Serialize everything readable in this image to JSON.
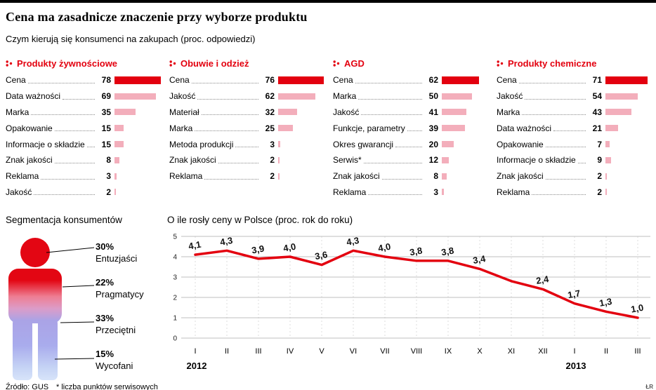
{
  "meta": {
    "credit": "ŁR"
  },
  "colors": {
    "accent": "#e3000f",
    "bar_primary": "#e3000f",
    "bar_secondary": "#f3aebb"
  },
  "header": {
    "title": "Cena ma zasadnicze znaczenie przy wyborze produktu",
    "subtitle": "Czym kierują się konsumenci na zakupach (proc. odpowiedzi)"
  },
  "ranking_columns": [
    {
      "title": "Produkty żywnościowe",
      "rows": [
        {
          "label": "Cena",
          "value": 78
        },
        {
          "label": "Data ważności",
          "value": 69
        },
        {
          "label": "Marka",
          "value": 35
        },
        {
          "label": "Opakowanie",
          "value": 15
        },
        {
          "label": "Informacje o składzie",
          "value": 15
        },
        {
          "label": "Znak jakości",
          "value": 8
        },
        {
          "label": "Reklama",
          "value": 3
        },
        {
          "label": "Jakość",
          "value": 2
        }
      ]
    },
    {
      "title": "Obuwie i odzież",
      "rows": [
        {
          "label": "Cena",
          "value": 76
        },
        {
          "label": "Jakość",
          "value": 62
        },
        {
          "label": "Materiał",
          "value": 32
        },
        {
          "label": "Marka",
          "value": 25
        },
        {
          "label": "Metoda produkcji",
          "value": 3
        },
        {
          "label": "Znak jakości",
          "value": 2
        },
        {
          "label": "Reklama",
          "value": 2
        }
      ]
    },
    {
      "title": "AGD",
      "rows": [
        {
          "label": "Cena",
          "value": 62
        },
        {
          "label": "Marka",
          "value": 50
        },
        {
          "label": "Jakość",
          "value": 41
        },
        {
          "label": "Funkcje, parametry",
          "value": 39
        },
        {
          "label": "Okres gwarancji",
          "value": 20
        },
        {
          "label": "Serwis*",
          "value": 12
        },
        {
          "label": "Znak jakości",
          "value": 8
        },
        {
          "label": "Reklama",
          "value": 3
        }
      ]
    },
    {
      "title": "Produkty chemiczne",
      "rows": [
        {
          "label": "Cena",
          "value": 71
        },
        {
          "label": "Jakość",
          "value": 54
        },
        {
          "label": "Marka",
          "value": 43
        },
        {
          "label": "Data ważności",
          "value": 21
        },
        {
          "label": "Opakowanie",
          "value": 7
        },
        {
          "label": "Informacje o składzie",
          "value": 9
        },
        {
          "label": "Znak jakości",
          "value": 2
        },
        {
          "label": "Reklama",
          "value": 2
        }
      ]
    }
  ],
  "segmentation": {
    "title": "Segmentacja konsumentów",
    "segments": [
      {
        "percent": "30%",
        "label": "Entuzjaści"
      },
      {
        "percent": "22%",
        "label": "Pragmatycy"
      },
      {
        "percent": "33%",
        "label": "Przeciętni"
      },
      {
        "percent": "15%",
        "label": "Wycofani"
      }
    ]
  },
  "chart_data": {
    "type": "line",
    "title": "O ile rosły ceny w Polsce (proc. rok do roku)",
    "x": [
      "I",
      "II",
      "III",
      "IV",
      "V",
      "VI",
      "VII",
      "VIII",
      "IX",
      "X",
      "XI",
      "XII",
      "I",
      "II",
      "III"
    ],
    "year_markers": [
      {
        "label": "2012",
        "index": 0
      },
      {
        "label": "2013",
        "index": 12
      }
    ],
    "values": [
      4.1,
      4.3,
      3.9,
      4.0,
      3.6,
      4.3,
      4.0,
      3.8,
      3.8,
      3.4,
      2.8,
      2.4,
      1.7,
      1.3,
      1.0
    ],
    "point_labels": [
      "4,1",
      "4,3",
      "3,9",
      "4,0",
      "3,6",
      "4,3",
      "4,0",
      "3,8",
      "3,8",
      "3,4",
      "",
      "2,4",
      "1,7",
      "1,3",
      "1,0"
    ],
    "ylim": [
      0,
      5
    ],
    "y_ticks": [
      0,
      1,
      2,
      3,
      4,
      5
    ],
    "grid": true,
    "line_color": "#e3000f"
  },
  "footer": {
    "source": "Źródło: GUS",
    "note": "* liczba punktów serwisowych"
  }
}
